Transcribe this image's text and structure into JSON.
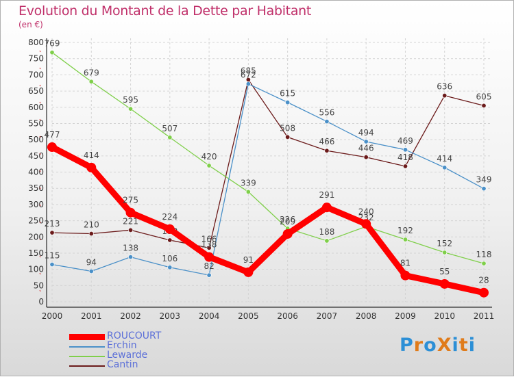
{
  "chart_data": {
    "type": "line",
    "title": "Evolution du Montant de la Dette par Habitant",
    "subtitle": "(en €)",
    "xlabel": "",
    "ylabel": "",
    "ylim": [
      0,
      800
    ],
    "yticks": [
      0,
      50,
      100,
      150,
      200,
      250,
      300,
      350,
      400,
      450,
      500,
      550,
      600,
      650,
      700,
      750,
      800
    ],
    "categories": [
      "2000",
      "2001",
      "2002",
      "2003",
      "2004",
      "2005",
      "2006",
      "2007",
      "2008",
      "2009",
      "2010",
      "2011"
    ],
    "grid": true,
    "legend_position": "bottom-left",
    "series": [
      {
        "name": "ROUCOURT",
        "color": "#ff0000",
        "values": [
          477,
          414,
          275,
          224,
          138,
          91,
          209,
          291,
          240,
          81,
          55,
          28
        ]
      },
      {
        "name": "Erchin",
        "color": "#4a90c8",
        "values": [
          115,
          94,
          138,
          106,
          82,
          672,
          615,
          556,
          494,
          469,
          414,
          349
        ]
      },
      {
        "name": "Lewarde",
        "color": "#7fcf4a",
        "values": [
          769,
          679,
          595,
          507,
          420,
          339,
          226,
          188,
          232,
          192,
          152,
          118
        ]
      },
      {
        "name": "Cantin",
        "color": "#6b1a1a",
        "values": [
          213,
          210,
          221,
          190,
          166,
          685,
          508,
          466,
          446,
          418,
          636,
          605
        ]
      }
    ]
  },
  "logo": {
    "text": "ProXiti",
    "letters": [
      "P",
      "r",
      "o",
      "X",
      "i",
      "t",
      "i"
    ]
  }
}
